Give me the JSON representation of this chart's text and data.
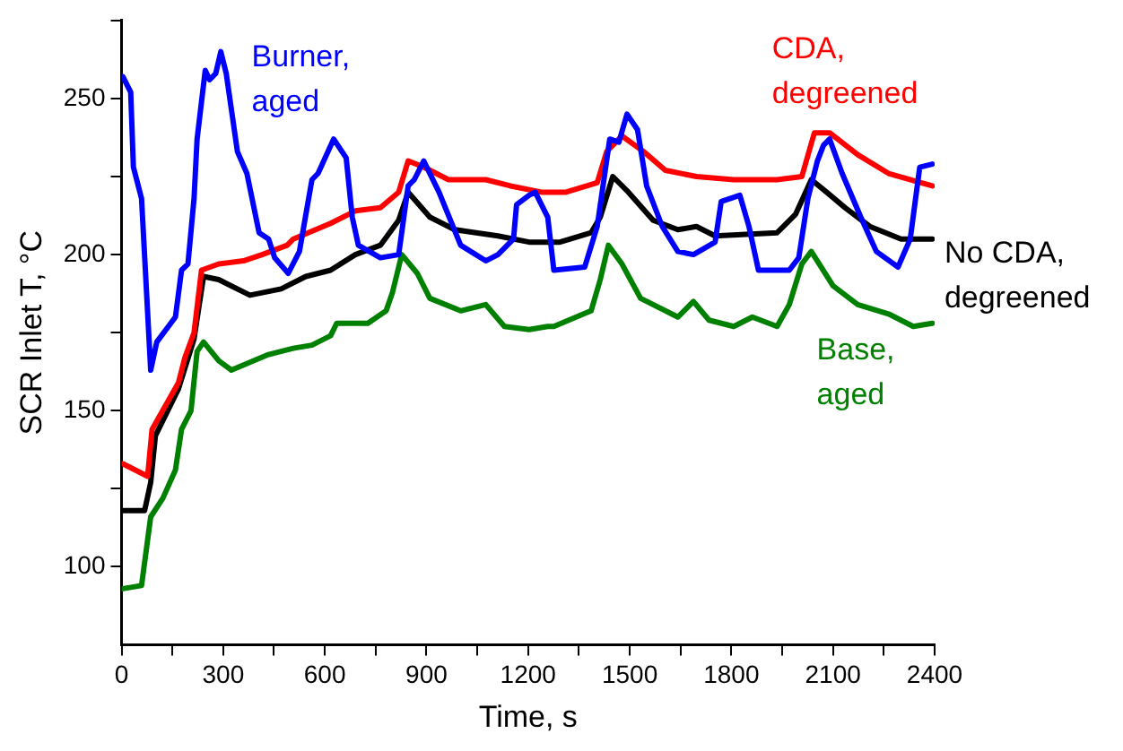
{
  "chart_data": {
    "type": "line",
    "xlabel": "Time, s",
    "ylabel": "SCR Inlet T, °C",
    "xlim": [
      0,
      2400
    ],
    "ylim": [
      75,
      275
    ],
    "xticks": [
      0,
      {
        "value": 150,
        "label": null
      },
      300,
      {
        "value": 450,
        "label": null
      },
      600,
      {
        "value": 750,
        "label": null
      },
      900,
      {
        "value": 1050,
        "label": null
      },
      1200,
      {
        "value": 1350,
        "label": null
      },
      1500,
      {
        "value": 1650,
        "label": null
      },
      1800,
      {
        "value": 1950,
        "label": null
      },
      2100,
      {
        "value": 2250,
        "label": null
      },
      2400
    ],
    "yticks": [
      100,
      {
        "value": 125,
        "label": null
      },
      150,
      {
        "value": 175,
        "label": null
      },
      200,
      {
        "value": 225,
        "label": null
      },
      250,
      {
        "value": 275,
        "label": null
      }
    ],
    "grid": false,
    "legend": false,
    "series": [
      {
        "name": "Burner, aged",
        "color": "#0000ff",
        "x": [
          4,
          27,
          35,
          59,
          86,
          104,
          159,
          177,
          196,
          214,
          223,
          247,
          260,
          278,
          293,
          309,
          342,
          370,
          406,
          434,
          452,
          492,
          525,
          562,
          580,
          626,
          663,
          681,
          699,
          764,
          818,
          846,
          864,
          892,
          937,
          1001,
          1075,
          1111,
          1157,
          1166,
          1203,
          1221,
          1258,
          1276,
          1367,
          1404,
          1441,
          1468,
          1492,
          1523,
          1550,
          1596,
          1642,
          1688,
          1752,
          1770,
          1825,
          1852,
          1880,
          1971,
          1999,
          2026,
          2054,
          2072,
          2090,
          2127,
          2182,
          2228,
          2292,
          2328,
          2356,
          2393
        ],
        "values": [
          257,
          252,
          228,
          218,
          163,
          172,
          180,
          195,
          197,
          218,
          237,
          259,
          256,
          258,
          265,
          258,
          233,
          226,
          207,
          205,
          199,
          194,
          201,
          224,
          226,
          237,
          231,
          212,
          203,
          199,
          200,
          222,
          224,
          230,
          220,
          203,
          198,
          200,
          205,
          216,
          219,
          220,
          212,
          195,
          196,
          209,
          237,
          236,
          245,
          240,
          222,
          209,
          201,
          200,
          204,
          217,
          219,
          209,
          195,
          195,
          199,
          218,
          230,
          235,
          237,
          226,
          212,
          201,
          196,
          205,
          228,
          229
        ]
      },
      {
        "name": "CDA, degreened",
        "color": "#ff0000",
        "x": [
          4,
          77,
          90,
          168,
          187,
          214,
          236,
          287,
          360,
          415,
          489,
          507,
          617,
          690,
          764,
          818,
          846,
          892,
          965,
          1075,
          1148,
          1239,
          1312,
          1404,
          1432,
          1477,
          1541,
          1605,
          1697,
          1807,
          1935,
          2008,
          2045,
          2090,
          2173,
          2264,
          2393
        ],
        "values": [
          133,
          129,
          144,
          159,
          167,
          175,
          195,
          197,
          198,
          200,
          203,
          205,
          210,
          214,
          215,
          220,
          230,
          228,
          224,
          224,
          222,
          220,
          220,
          223,
          233,
          238,
          233,
          227,
          225,
          224,
          224,
          225,
          239,
          239,
          232,
          226,
          222
        ]
      },
      {
        "name": "No CDA, degreened",
        "color": "#000000",
        "x": [
          4,
          68,
          86,
          100,
          168,
          214,
          242,
          287,
          379,
          471,
          544,
          617,
          690,
          764,
          818,
          846,
          910,
          983,
          1111,
          1203,
          1294,
          1386,
          1413,
          1450,
          1496,
          1569,
          1642,
          1697,
          1752,
          1935,
          1990,
          2036,
          2081,
          2136,
          2209,
          2301,
          2393
        ],
        "values": [
          118,
          118,
          127,
          142,
          157,
          173,
          193,
          192,
          187,
          189,
          193,
          195,
          200,
          203,
          211,
          220,
          212,
          208,
          206,
          204,
          204,
          207,
          212,
          225,
          220,
          211,
          208,
          209,
          206,
          207,
          213,
          224,
          220,
          215,
          209,
          205,
          205
        ]
      },
      {
        "name": "Base, aged",
        "color": "#008000",
        "x": [
          4,
          59,
          86,
          122,
          159,
          177,
          205,
          223,
          242,
          287,
          324,
          434,
          507,
          562,
          617,
          635,
          727,
          781,
          800,
          827,
          873,
          910,
          1001,
          1075,
          1130,
          1203,
          1258,
          1276,
          1386,
          1413,
          1437,
          1477,
          1532,
          1642,
          1688,
          1734,
          1807,
          1862,
          1935,
          1971,
          2008,
          2036,
          2100,
          2173,
          2264,
          2337,
          2393
        ],
        "values": [
          93,
          94,
          116,
          122,
          131,
          144,
          150,
          169,
          172,
          166,
          163,
          168,
          170,
          171,
          174,
          178,
          178,
          182,
          188,
          200,
          194,
          186,
          182,
          184,
          177,
          176,
          177,
          177,
          182,
          192,
          203,
          197,
          186,
          180,
          185,
          179,
          177,
          180,
          177,
          184,
          197,
          201,
          190,
          184,
          181,
          177,
          178
        ]
      }
    ]
  }
}
